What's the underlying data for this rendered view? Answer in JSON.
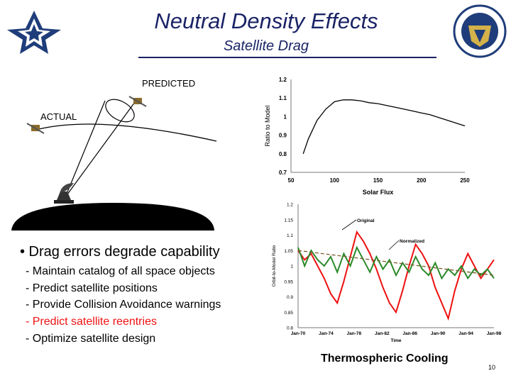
{
  "slide": {
    "title": "Neutral Density Effects",
    "subtitle": "Satellite Drag",
    "page_number": "10",
    "colors": {
      "title": "#1a2366",
      "highlight": "#ee1111"
    }
  },
  "illustration": {
    "predicted_label": "PREDICTED",
    "actual_label": "ACTUAL",
    "icons": [
      "air-force-logo",
      "command-seal",
      "satellite-icon",
      "radar-icon"
    ]
  },
  "bullets": {
    "main": "• Drag errors degrade capability",
    "items": [
      {
        "text": "- Maintain catalog of all space objects",
        "highlight": false
      },
      {
        "text": "- Predict satellite positions",
        "highlight": false
      },
      {
        "text": "- Provide Collision Avoidance warnings",
        "highlight": false
      },
      {
        "text": "- Predict satellite reentries",
        "highlight": true
      },
      {
        "text": "- Optimize satellite design",
        "highlight": false
      }
    ]
  },
  "caption": "Thermospheric Cooling",
  "chart_data": [
    {
      "type": "line",
      "xlabel": "Solar Flux",
      "ylabel": "Ratio to Model",
      "xlim": [
        50,
        250
      ],
      "ylim": [
        0.7,
        1.2
      ],
      "xticks": [
        "50",
        "100",
        "150",
        "200",
        "250"
      ],
      "yticks": [
        "1.2",
        "1.1",
        "1",
        "0.9",
        "0.8",
        "0.7"
      ],
      "series": [
        {
          "x": [
            64,
            70,
            80,
            90,
            100,
            110,
            120,
            130,
            140,
            150,
            160,
            170,
            180,
            190,
            200,
            210,
            220,
            230,
            240,
            250
          ],
          "y": [
            0.8,
            0.88,
            0.98,
            1.04,
            1.08,
            1.09,
            1.09,
            1.085,
            1.075,
            1.07,
            1.06,
            1.05,
            1.04,
            1.03,
            1.02,
            1.01,
            0.995,
            0.98,
            0.965,
            0.95
          ]
        }
      ]
    },
    {
      "type": "line",
      "xlabel": "Time",
      "ylabel": "Orbit-to-Model Ratio",
      "ylim": [
        0.8,
        1.2
      ],
      "xticks": [
        "Jan-70",
        "Jan-74",
        "Jan-78",
        "Jan-82",
        "Jan-86",
        "Jan-90",
        "Jan-94",
        "Jan-98"
      ],
      "yticks": [
        "1.2",
        "1.15",
        "1.1",
        "1.05",
        "1",
        "0.95",
        "0.9",
        "0.85",
        "0.8"
      ],
      "annotations": [
        "Original",
        "Normalized"
      ],
      "series": [
        {
          "name": "Original",
          "color": "#e11",
          "x": [
            1970,
            1971,
            1972,
            1973,
            1974,
            1975,
            1976,
            1977,
            1978,
            1979,
            1980,
            1981,
            1982,
            1983,
            1984,
            1985,
            1986,
            1987,
            1988,
            1989,
            1990,
            1991,
            1992,
            1993,
            1994,
            1995,
            1996,
            1997,
            1998,
            1999,
            2000
          ],
          "y": [
            1.05,
            1.02,
            1.04,
            1.0,
            0.96,
            0.91,
            0.88,
            0.95,
            1.03,
            1.11,
            1.08,
            1.04,
            0.99,
            0.93,
            0.88,
            0.85,
            0.92,
            1.0,
            1.07,
            1.04,
            1.0,
            0.93,
            0.88,
            0.83,
            0.92,
            0.99,
            1.04,
            1.0,
            0.96,
            0.99,
            1.02
          ]
        },
        {
          "name": "Normalized",
          "color": "#2a8a2a",
          "x": [
            1970,
            1971,
            1972,
            1973,
            1974,
            1975,
            1976,
            1977,
            1978,
            1979,
            1980,
            1981,
            1982,
            1983,
            1984,
            1985,
            1986,
            1987,
            1988,
            1989,
            1990,
            1991,
            1992,
            1993,
            1994,
            1995,
            1996,
            1997,
            1998,
            1999,
            2000
          ],
          "y": [
            1.06,
            1.0,
            1.05,
            1.02,
            1.0,
            1.03,
            0.98,
            1.04,
            1.0,
            1.06,
            1.02,
            0.98,
            1.03,
            0.99,
            1.02,
            0.97,
            1.01,
            0.98,
            1.03,
            0.99,
            0.97,
            1.01,
            0.96,
            0.99,
            0.97,
            1.0,
            0.96,
            0.99,
            0.97,
            0.99,
            0.96
          ]
        },
        {
          "name": "",
          "color": "#7a5a2a",
          "dashed": true,
          "x": [
            1970,
            2000
          ],
          "y": [
            1.05,
            0.97
          ]
        }
      ]
    }
  ]
}
